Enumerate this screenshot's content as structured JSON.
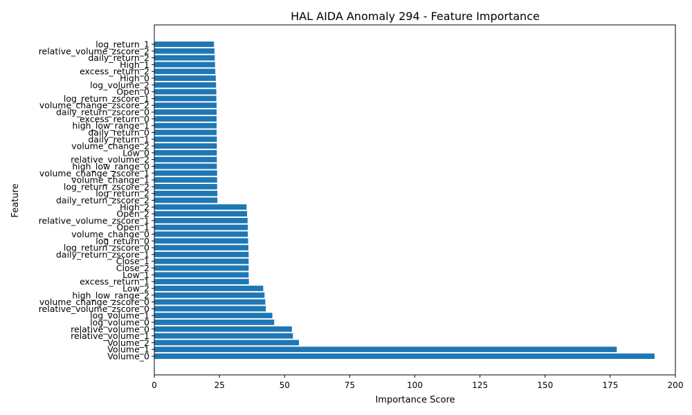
{
  "chart_data": {
    "type": "bar",
    "orientation": "horizontal",
    "title": "HAL AIDA Anomaly 294 - Feature Importance",
    "xlabel": "Importance Score",
    "ylabel": "Feature",
    "xlim": [
      0,
      200
    ],
    "xticks": [
      0,
      25,
      50,
      75,
      100,
      125,
      150,
      175,
      200
    ],
    "grid": false,
    "bar_color": "#1f77b4",
    "categories": [
      "Volume_0",
      "Volume_1",
      "Volume_2",
      "relative_volume_1",
      "relative_volume_0",
      "log_volume_0",
      "log_volume_1",
      "relative_volume_zscore_0",
      "volume_change_zscore_0",
      "high_low_range_2",
      "Low_2",
      "excess_return_1",
      "Low_1",
      "Close_2",
      "Close_1",
      "daily_return_zscore_1",
      "log_return_zscore_0",
      "log_return_0",
      "volume_change_0",
      "Open_1",
      "relative_volume_zscore_1",
      "Open_2",
      "High_2",
      "daily_return_zscore_2",
      "log_return_2",
      "log_return_zscore_2",
      "volume_change_1",
      "volume_change_zscore_1",
      "high_low_range_0",
      "relative_volume_2",
      "Low_0",
      "volume_change_2",
      "daily_return_1",
      "daily_return_0",
      "high_low_range_1",
      "excess_return_0",
      "daily_return_zscore_0",
      "volume_change_zscore_2",
      "log_return_zscore_1",
      "Open_0",
      "log_volume_2",
      "High_0",
      "excess_return_2",
      "High_1",
      "daily_return_2",
      "relative_volume_zscore_2",
      "log_return_1"
    ],
    "values": [
      192.0,
      177.5,
      55.5,
      53.2,
      52.8,
      46.0,
      45.3,
      42.8,
      42.6,
      42.3,
      41.8,
      36.3,
      36.2,
      36.2,
      36.2,
      36.2,
      36.1,
      36.0,
      35.9,
      35.9,
      35.8,
      35.6,
      35.4,
      24.2,
      24.2,
      24.1,
      24.1,
      24.1,
      24.0,
      24.0,
      24.0,
      24.0,
      24.0,
      23.9,
      23.9,
      23.9,
      23.9,
      23.9,
      23.8,
      23.8,
      23.7,
      23.6,
      23.4,
      23.3,
      23.2,
      23.1,
      22.9
    ]
  }
}
